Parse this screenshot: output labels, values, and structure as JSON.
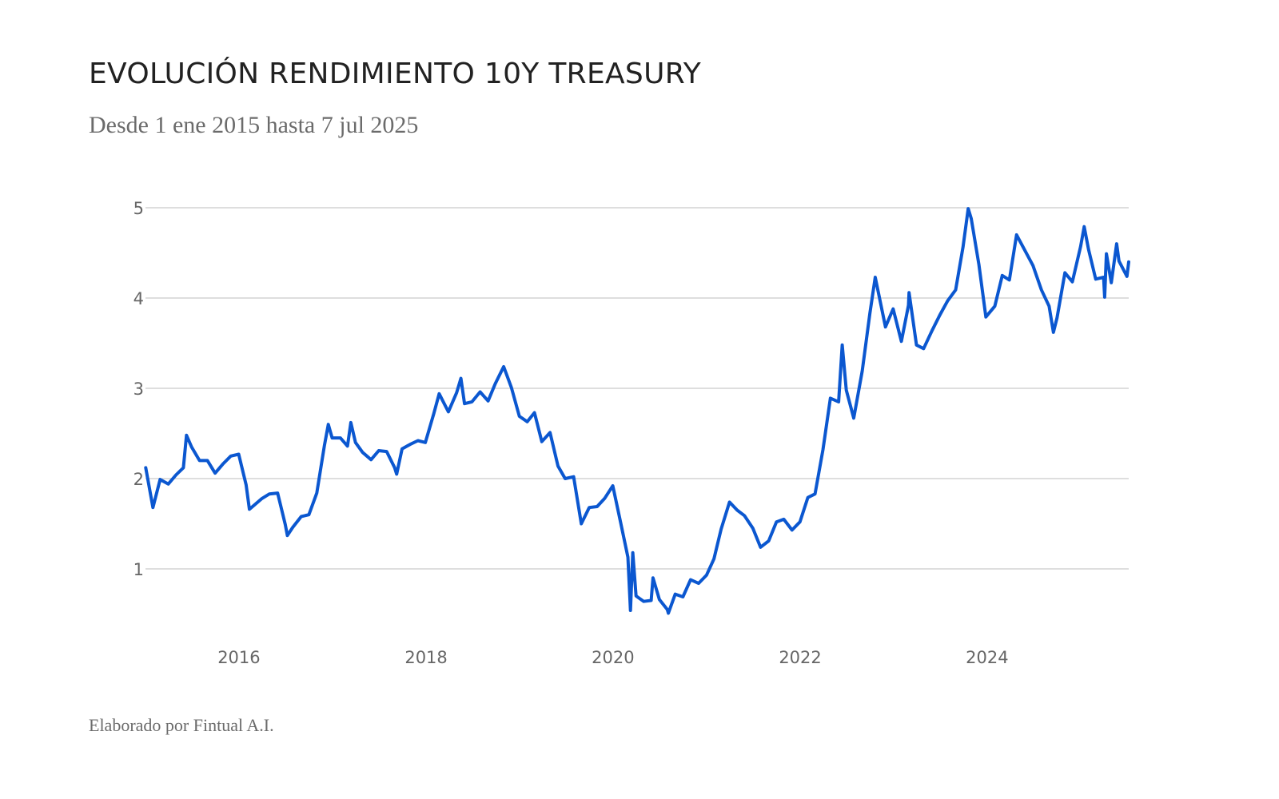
{
  "header": {
    "title": "EVOLUCIÓN RENDIMIENTO 10Y TREASURY",
    "subtitle": "Desde 1 ene 2015 hasta 7 jul 2025"
  },
  "footer": {
    "credit": "Elaborado por Fintual A.I."
  },
  "colors": {
    "series": "#0b57d0",
    "grid": "#c9c9c9",
    "tick_text": "#666666",
    "title": "#222222",
    "subtitle": "#6b6b6b"
  },
  "chart_data": {
    "type": "line",
    "title": "EVOLUCIÓN RENDIMIENTO 10Y TREASURY",
    "subtitle": "Desde 1 ene 2015 hasta 7 jul 2025",
    "xlabel": "",
    "ylabel": "",
    "xlim": [
      "2015-01-01",
      "2025-07-07"
    ],
    "ylim": [
      0.5,
      5
    ],
    "grid": "horizontal",
    "legend": "none",
    "x_ticks": [
      "2016",
      "2018",
      "2020",
      "2022",
      "2024"
    ],
    "y_ticks": [
      "1",
      "2",
      "3",
      "4",
      "5"
    ],
    "series": [
      {
        "values": [
          [
            "2015-01-02",
            2.12
          ],
          [
            "2015-01-30",
            1.68
          ],
          [
            "2015-02-27",
            1.99
          ],
          [
            "2015-03-31",
            1.94
          ],
          [
            "2015-04-30",
            2.04
          ],
          [
            "2015-05-29",
            2.12
          ],
          [
            "2015-06-10",
            2.48
          ],
          [
            "2015-06-30",
            2.35
          ],
          [
            "2015-07-31",
            2.2
          ],
          [
            "2015-08-31",
            2.2
          ],
          [
            "2015-09-30",
            2.06
          ],
          [
            "2015-10-30",
            2.16
          ],
          [
            "2015-11-30",
            2.25
          ],
          [
            "2015-12-31",
            2.27
          ],
          [
            "2016-01-29",
            1.93
          ],
          [
            "2016-02-11",
            1.66
          ],
          [
            "2016-03-31",
            1.78
          ],
          [
            "2016-04-29",
            1.83
          ],
          [
            "2016-05-31",
            1.84
          ],
          [
            "2016-06-30",
            1.49
          ],
          [
            "2016-07-08",
            1.37
          ],
          [
            "2016-07-29",
            1.46
          ],
          [
            "2016-08-31",
            1.58
          ],
          [
            "2016-09-30",
            1.6
          ],
          [
            "2016-10-31",
            1.84
          ],
          [
            "2016-11-30",
            2.37
          ],
          [
            "2016-12-15",
            2.6
          ],
          [
            "2016-12-30",
            2.45
          ],
          [
            "2017-01-31",
            2.45
          ],
          [
            "2017-02-28",
            2.36
          ],
          [
            "2017-03-13",
            2.62
          ],
          [
            "2017-03-31",
            2.4
          ],
          [
            "2017-04-28",
            2.29
          ],
          [
            "2017-05-31",
            2.21
          ],
          [
            "2017-06-30",
            2.31
          ],
          [
            "2017-07-31",
            2.3
          ],
          [
            "2017-08-31",
            2.12
          ],
          [
            "2017-09-08",
            2.05
          ],
          [
            "2017-09-29",
            2.33
          ],
          [
            "2017-10-31",
            2.38
          ],
          [
            "2017-11-30",
            2.42
          ],
          [
            "2017-12-29",
            2.4
          ],
          [
            "2018-01-31",
            2.72
          ],
          [
            "2018-02-21",
            2.94
          ],
          [
            "2018-03-29",
            2.74
          ],
          [
            "2018-04-30",
            2.95
          ],
          [
            "2018-05-17",
            3.11
          ],
          [
            "2018-05-31",
            2.83
          ],
          [
            "2018-06-29",
            2.85
          ],
          [
            "2018-07-31",
            2.96
          ],
          [
            "2018-08-31",
            2.86
          ],
          [
            "2018-09-28",
            3.05
          ],
          [
            "2018-10-31",
            3.24
          ],
          [
            "2018-11-30",
            3.01
          ],
          [
            "2018-12-31",
            2.69
          ],
          [
            "2019-01-31",
            2.63
          ],
          [
            "2019-02-28",
            2.73
          ],
          [
            "2019-03-29",
            2.41
          ],
          [
            "2019-04-30",
            2.51
          ],
          [
            "2019-05-31",
            2.14
          ],
          [
            "2019-06-28",
            2.0
          ],
          [
            "2019-07-31",
            2.02
          ],
          [
            "2019-08-30",
            1.5
          ],
          [
            "2019-09-30",
            1.68
          ],
          [
            "2019-10-31",
            1.69
          ],
          [
            "2019-11-29",
            1.78
          ],
          [
            "2019-12-31",
            1.92
          ],
          [
            "2020-01-31",
            1.51
          ],
          [
            "2020-02-28",
            1.13
          ],
          [
            "2020-03-09",
            0.54
          ],
          [
            "2020-03-18",
            1.18
          ],
          [
            "2020-03-31",
            0.7
          ],
          [
            "2020-04-30",
            0.64
          ],
          [
            "2020-05-29",
            0.65
          ],
          [
            "2020-06-05",
            0.9
          ],
          [
            "2020-06-30",
            0.66
          ],
          [
            "2020-07-31",
            0.55
          ],
          [
            "2020-08-04",
            0.51
          ],
          [
            "2020-08-31",
            0.72
          ],
          [
            "2020-09-30",
            0.69
          ],
          [
            "2020-10-30",
            0.88
          ],
          [
            "2020-11-30",
            0.84
          ],
          [
            "2020-12-31",
            0.93
          ],
          [
            "2021-01-29",
            1.11
          ],
          [
            "2021-02-26",
            1.44
          ],
          [
            "2021-03-31",
            1.74
          ],
          [
            "2021-04-30",
            1.65
          ],
          [
            "2021-05-28",
            1.59
          ],
          [
            "2021-06-30",
            1.45
          ],
          [
            "2021-07-30",
            1.24
          ],
          [
            "2021-08-31",
            1.31
          ],
          [
            "2021-09-30",
            1.52
          ],
          [
            "2021-10-29",
            1.55
          ],
          [
            "2021-11-30",
            1.43
          ],
          [
            "2021-12-31",
            1.52
          ],
          [
            "2022-01-31",
            1.79
          ],
          [
            "2022-02-28",
            1.83
          ],
          [
            "2022-03-31",
            2.32
          ],
          [
            "2022-04-29",
            2.89
          ],
          [
            "2022-05-31",
            2.85
          ],
          [
            "2022-06-14",
            3.48
          ],
          [
            "2022-06-30",
            2.98
          ],
          [
            "2022-07-29",
            2.67
          ],
          [
            "2022-08-31",
            3.19
          ],
          [
            "2022-09-30",
            3.83
          ],
          [
            "2022-10-21",
            4.23
          ],
          [
            "2022-11-30",
            3.68
          ],
          [
            "2022-12-30",
            3.88
          ],
          [
            "2023-01-31",
            3.52
          ],
          [
            "2023-02-28",
            3.92
          ],
          [
            "2023-03-02",
            4.06
          ],
          [
            "2023-03-31",
            3.48
          ],
          [
            "2023-04-28",
            3.44
          ],
          [
            "2023-05-31",
            3.64
          ],
          [
            "2023-06-30",
            3.81
          ],
          [
            "2023-07-31",
            3.97
          ],
          [
            "2023-08-31",
            4.09
          ],
          [
            "2023-09-29",
            4.57
          ],
          [
            "2023-10-19",
            4.99
          ],
          [
            "2023-10-31",
            4.88
          ],
          [
            "2023-11-30",
            4.37
          ],
          [
            "2023-12-27",
            3.79
          ],
          [
            "2024-01-31",
            3.91
          ],
          [
            "2024-02-29",
            4.25
          ],
          [
            "2024-03-28",
            4.2
          ],
          [
            "2024-04-25",
            4.7
          ],
          [
            "2024-05-31",
            4.51
          ],
          [
            "2024-06-28",
            4.36
          ],
          [
            "2024-07-31",
            4.09
          ],
          [
            "2024-08-30",
            3.91
          ],
          [
            "2024-09-16",
            3.62
          ],
          [
            "2024-09-30",
            3.78
          ],
          [
            "2024-10-31",
            4.28
          ],
          [
            "2024-11-29",
            4.18
          ],
          [
            "2024-12-31",
            4.57
          ],
          [
            "2025-01-14",
            4.79
          ],
          [
            "2025-01-31",
            4.54
          ],
          [
            "2025-02-28",
            4.21
          ],
          [
            "2025-03-31",
            4.23
          ],
          [
            "2025-04-04",
            4.01
          ],
          [
            "2025-04-11",
            4.49
          ],
          [
            "2025-04-30",
            4.17
          ],
          [
            "2025-05-21",
            4.6
          ],
          [
            "2025-05-30",
            4.41
          ],
          [
            "2025-06-30",
            4.24
          ],
          [
            "2025-07-07",
            4.4
          ]
        ]
      }
    ]
  }
}
